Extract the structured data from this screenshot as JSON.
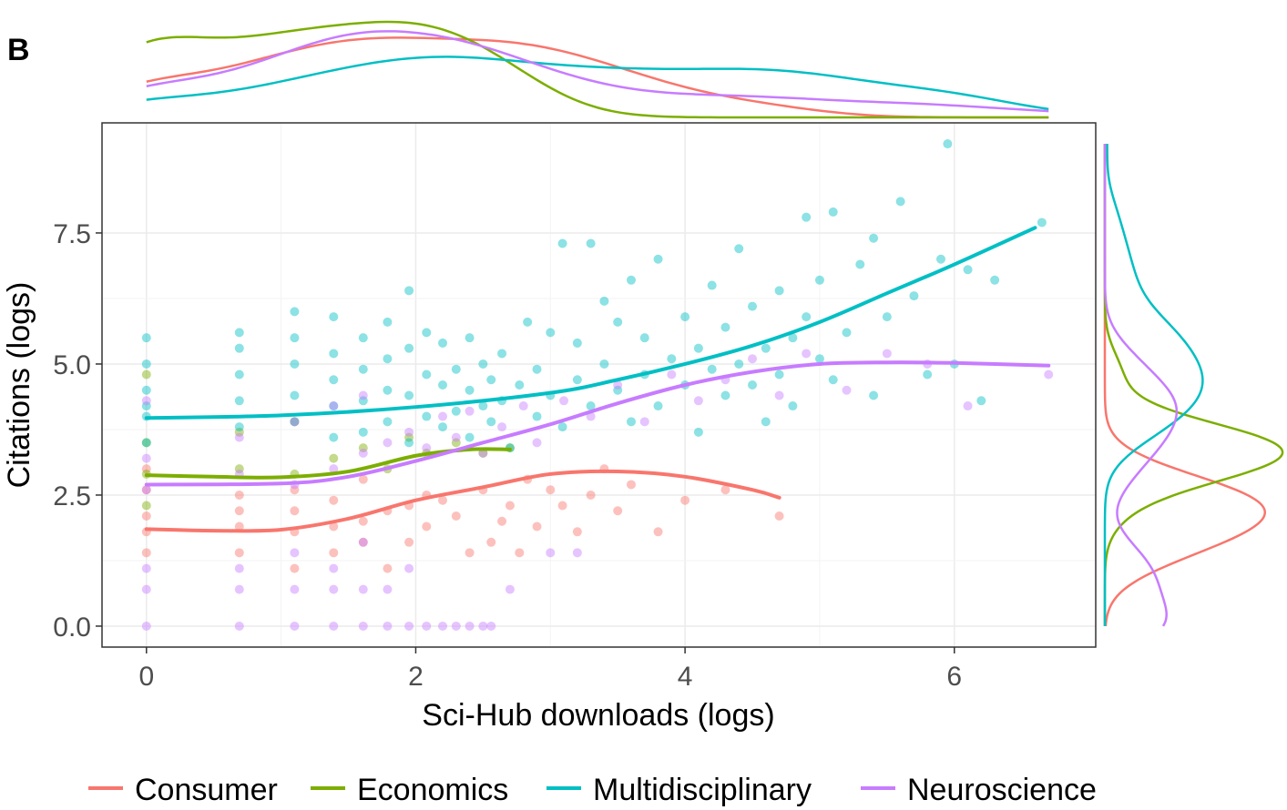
{
  "panel_label": "B",
  "colors": {
    "Consumer": "#F8766D",
    "Economics": "#7CAE00",
    "Multidisciplinary": "#00BFC4",
    "Neuroscience": "#C77CFF"
  },
  "chart_data": {
    "type": "scatter",
    "title": "",
    "xlabel": "Sci-Hub downloads (logs)",
    "ylabel": "Citations (logs)",
    "xlim": [
      -0.33,
      7.05
    ],
    "ylim": [
      -0.4,
      9.6
    ],
    "x_ticks": [
      0,
      2,
      4,
      6
    ],
    "x_tick_labels": [
      "0",
      "2",
      "4",
      "6"
    ],
    "y_ticks": [
      0.0,
      2.5,
      5.0,
      7.5
    ],
    "y_tick_labels": [
      "0.0",
      "2.5",
      "5.0",
      "7.5"
    ],
    "grid": true,
    "marginal_density": {
      "top": true,
      "right": true
    },
    "legend_position": "bottom",
    "legend": [
      "Consumer",
      "Economics",
      "Multidisciplinary",
      "Neuroscience"
    ],
    "series": [
      {
        "name": "Consumer",
        "color": "#F8766D",
        "smooth": [
          [
            0,
            1.85
          ],
          [
            0.5,
            1.82
          ],
          [
            1,
            1.84
          ],
          [
            1.5,
            2.05
          ],
          [
            2,
            2.4
          ],
          [
            2.5,
            2.65
          ],
          [
            3,
            2.9
          ],
          [
            3.5,
            2.95
          ],
          [
            4,
            2.85
          ],
          [
            4.5,
            2.6
          ],
          [
            4.7,
            2.45
          ]
        ],
        "points": [
          [
            0,
            1.8
          ],
          [
            0,
            2.1
          ],
          [
            0,
            1.4
          ],
          [
            0,
            2.6
          ],
          [
            0,
            3.0
          ],
          [
            0.69,
            1.9
          ],
          [
            0.69,
            2.2
          ],
          [
            0.69,
            1.4
          ],
          [
            0.69,
            2.5
          ],
          [
            1.1,
            1.8
          ],
          [
            1.1,
            2.2
          ],
          [
            1.1,
            1.1
          ],
          [
            1.1,
            2.6
          ],
          [
            1.39,
            1.9
          ],
          [
            1.39,
            1.4
          ],
          [
            1.39,
            2.4
          ],
          [
            1.61,
            2.0
          ],
          [
            1.61,
            1.6
          ],
          [
            1.61,
            2.8
          ],
          [
            1.79,
            2.2
          ],
          [
            1.79,
            1.1
          ],
          [
            1.95,
            2.3
          ],
          [
            1.95,
            1.6
          ],
          [
            2.08,
            2.5
          ],
          [
            2.08,
            1.9
          ],
          [
            2.2,
            2.4
          ],
          [
            2.3,
            2.1
          ],
          [
            2.4,
            1.4
          ],
          [
            2.5,
            2.6
          ],
          [
            2.56,
            1.6
          ],
          [
            2.64,
            2.0
          ],
          [
            2.7,
            2.3
          ],
          [
            2.77,
            1.4
          ],
          [
            2.83,
            2.8
          ],
          [
            2.9,
            1.9
          ],
          [
            3.0,
            2.6
          ],
          [
            3.09,
            2.3
          ],
          [
            3.2,
            1.8
          ],
          [
            3.3,
            2.5
          ],
          [
            3.4,
            3.0
          ],
          [
            3.5,
            2.2
          ],
          [
            3.6,
            2.7
          ],
          [
            3.8,
            1.8
          ],
          [
            4.0,
            2.4
          ],
          [
            4.3,
            2.6
          ],
          [
            4.7,
            2.1
          ]
        ]
      },
      {
        "name": "Economics",
        "color": "#7CAE00",
        "smooth": [
          [
            0,
            2.88
          ],
          [
            0.5,
            2.85
          ],
          [
            1,
            2.84
          ],
          [
            1.5,
            2.95
          ],
          [
            2,
            3.25
          ],
          [
            2.4,
            3.37
          ],
          [
            2.7,
            3.37
          ]
        ],
        "points": [
          [
            0,
            2.9
          ],
          [
            0,
            3.5
          ],
          [
            0,
            4.8
          ],
          [
            0,
            2.3
          ],
          [
            0.69,
            3.0
          ],
          [
            0.69,
            3.7
          ],
          [
            1.1,
            2.9
          ],
          [
            1.1,
            3.9
          ],
          [
            1.39,
            3.2
          ],
          [
            1.61,
            3.4
          ],
          [
            1.79,
            3.0
          ],
          [
            1.95,
            3.6
          ],
          [
            2.08,
            3.3
          ],
          [
            2.3,
            3.5
          ],
          [
            2.5,
            3.3
          ],
          [
            2.7,
            3.4
          ]
        ]
      },
      {
        "name": "Multidisciplinary",
        "color": "#00BFC4",
        "smooth": [
          [
            0,
            3.97
          ],
          [
            1,
            4.02
          ],
          [
            2,
            4.18
          ],
          [
            3,
            4.45
          ],
          [
            3.5,
            4.7
          ],
          [
            4,
            5.0
          ],
          [
            4.5,
            5.35
          ],
          [
            5,
            5.8
          ],
          [
            5.5,
            6.35
          ],
          [
            6,
            6.9
          ],
          [
            6.6,
            7.6
          ]
        ],
        "points": [
          [
            0,
            3.5
          ],
          [
            0,
            4.0
          ],
          [
            0,
            4.5
          ],
          [
            0,
            5.0
          ],
          [
            0,
            5.5
          ],
          [
            0,
            4.2
          ],
          [
            0.69,
            3.8
          ],
          [
            0.69,
            4.3
          ],
          [
            0.69,
            4.8
          ],
          [
            0.69,
            5.3
          ],
          [
            0.69,
            5.6
          ],
          [
            1.1,
            3.9
          ],
          [
            1.1,
            4.4
          ],
          [
            1.1,
            5.0
          ],
          [
            1.1,
            5.5
          ],
          [
            1.1,
            6.0
          ],
          [
            1.39,
            3.6
          ],
          [
            1.39,
            4.2
          ],
          [
            1.39,
            4.7
          ],
          [
            1.39,
            5.2
          ],
          [
            1.39,
            5.9
          ],
          [
            1.61,
            3.7
          ],
          [
            1.61,
            4.3
          ],
          [
            1.61,
            4.9
          ],
          [
            1.61,
            5.5
          ],
          [
            1.79,
            3.9
          ],
          [
            1.79,
            4.5
          ],
          [
            1.79,
            5.1
          ],
          [
            1.79,
            5.8
          ],
          [
            1.95,
            3.5
          ],
          [
            1.95,
            4.4
          ],
          [
            1.95,
            5.3
          ],
          [
            1.95,
            6.4
          ],
          [
            2.08,
            4.0
          ],
          [
            2.08,
            4.8
          ],
          [
            2.08,
            5.6
          ],
          [
            2.2,
            3.8
          ],
          [
            2.2,
            4.6
          ],
          [
            2.2,
            5.4
          ],
          [
            2.3,
            4.1
          ],
          [
            2.3,
            4.9
          ],
          [
            2.4,
            3.6
          ],
          [
            2.4,
            4.5
          ],
          [
            2.4,
            5.5
          ],
          [
            2.5,
            4.2
          ],
          [
            2.5,
            5.0
          ],
          [
            2.56,
            3.9
          ],
          [
            2.56,
            4.7
          ],
          [
            2.64,
            4.3
          ],
          [
            2.64,
            5.2
          ],
          [
            2.7,
            3.4
          ],
          [
            2.77,
            4.6
          ],
          [
            2.83,
            5.8
          ],
          [
            2.9,
            4.0
          ],
          [
            2.9,
            4.9
          ],
          [
            3.0,
            4.4
          ],
          [
            3.0,
            5.6
          ],
          [
            3.09,
            3.8
          ],
          [
            3.09,
            7.3
          ],
          [
            3.2,
            4.7
          ],
          [
            3.2,
            5.4
          ],
          [
            3.3,
            4.2
          ],
          [
            3.3,
            7.3
          ],
          [
            3.4,
            5.0
          ],
          [
            3.4,
            6.2
          ],
          [
            3.5,
            4.5
          ],
          [
            3.5,
            5.8
          ],
          [
            3.6,
            3.9
          ],
          [
            3.6,
            6.6
          ],
          [
            3.7,
            4.8
          ],
          [
            3.7,
            5.5
          ],
          [
            3.8,
            4.2
          ],
          [
            3.8,
            7.0
          ],
          [
            3.9,
            5.1
          ],
          [
            4.0,
            4.6
          ],
          [
            4.0,
            5.9
          ],
          [
            4.1,
            3.7
          ],
          [
            4.1,
            5.3
          ],
          [
            4.2,
            4.9
          ],
          [
            4.2,
            6.5
          ],
          [
            4.3,
            4.4
          ],
          [
            4.3,
            5.7
          ],
          [
            4.4,
            5.0
          ],
          [
            4.4,
            7.2
          ],
          [
            4.5,
            4.6
          ],
          [
            4.5,
            6.1
          ],
          [
            4.6,
            5.3
          ],
          [
            4.6,
            3.9
          ],
          [
            4.7,
            4.8
          ],
          [
            4.7,
            6.4
          ],
          [
            4.8,
            5.5
          ],
          [
            4.8,
            4.2
          ],
          [
            4.9,
            5.9
          ],
          [
            4.9,
            7.8
          ],
          [
            5.0,
            5.1
          ],
          [
            5.0,
            6.6
          ],
          [
            5.1,
            7.9
          ],
          [
            5.1,
            4.7
          ],
          [
            5.2,
            5.6
          ],
          [
            5.3,
            6.9
          ],
          [
            5.4,
            7.4
          ],
          [
            5.4,
            4.4
          ],
          [
            5.5,
            5.9
          ],
          [
            5.6,
            8.1
          ],
          [
            5.7,
            6.3
          ],
          [
            5.8,
            4.8
          ],
          [
            5.9,
            7.0
          ],
          [
            5.95,
            9.2
          ],
          [
            6.0,
            5.0
          ],
          [
            6.1,
            6.8
          ],
          [
            6.2,
            4.3
          ],
          [
            6.3,
            6.6
          ],
          [
            6.65,
            7.7
          ]
        ]
      },
      {
        "name": "Neuroscience",
        "color": "#C77CFF",
        "smooth": [
          [
            0,
            2.7
          ],
          [
            1,
            2.72
          ],
          [
            1.5,
            2.85
          ],
          [
            2,
            3.15
          ],
          [
            2.5,
            3.5
          ],
          [
            3,
            3.85
          ],
          [
            3.5,
            4.25
          ],
          [
            4,
            4.6
          ],
          [
            4.5,
            4.85
          ],
          [
            5,
            5.0
          ],
          [
            5.5,
            5.03
          ],
          [
            6,
            5.02
          ],
          [
            6.7,
            4.97
          ]
        ],
        "points": [
          [
            0,
            0.7
          ],
          [
            0,
            0.0
          ],
          [
            0,
            1.1
          ],
          [
            0,
            2.6
          ],
          [
            0,
            3.2
          ],
          [
            0,
            4.3
          ],
          [
            0.69,
            0.7
          ],
          [
            0.69,
            0.0
          ],
          [
            0.69,
            1.1
          ],
          [
            0.69,
            2.9
          ],
          [
            0.69,
            3.6
          ],
          [
            1.1,
            0.7
          ],
          [
            1.1,
            0.0
          ],
          [
            1.1,
            1.4
          ],
          [
            1.1,
            2.7
          ],
          [
            1.1,
            3.9
          ],
          [
            1.39,
            0.7
          ],
          [
            1.39,
            0.0
          ],
          [
            1.39,
            1.1
          ],
          [
            1.39,
            3.0
          ],
          [
            1.39,
            4.2
          ],
          [
            1.61,
            0.7
          ],
          [
            1.61,
            0.0
          ],
          [
            1.61,
            1.6
          ],
          [
            1.61,
            3.3
          ],
          [
            1.61,
            4.4
          ],
          [
            1.79,
            0.0
          ],
          [
            1.79,
            0.7
          ],
          [
            1.79,
            3.5
          ],
          [
            1.95,
            0.0
          ],
          [
            1.95,
            1.1
          ],
          [
            1.95,
            3.7
          ],
          [
            2.08,
            0.0
          ],
          [
            2.08,
            3.4
          ],
          [
            2.2,
            0.0
          ],
          [
            2.2,
            4.0
          ],
          [
            2.3,
            0.0
          ],
          [
            2.3,
            3.6
          ],
          [
            2.4,
            0.0
          ],
          [
            2.4,
            4.1
          ],
          [
            2.5,
            0.0
          ],
          [
            2.5,
            3.3
          ],
          [
            2.56,
            0.0
          ],
          [
            2.64,
            3.8
          ],
          [
            2.7,
            0.7
          ],
          [
            2.8,
            4.2
          ],
          [
            2.9,
            3.5
          ],
          [
            3.0,
            1.4
          ],
          [
            3.1,
            4.3
          ],
          [
            3.2,
            1.4
          ],
          [
            3.3,
            4.0
          ],
          [
            3.5,
            4.6
          ],
          [
            3.7,
            3.9
          ],
          [
            3.9,
            4.8
          ],
          [
            4.1,
            4.3
          ],
          [
            4.3,
            4.7
          ],
          [
            4.5,
            5.1
          ],
          [
            4.7,
            4.4
          ],
          [
            4.9,
            5.2
          ],
          [
            5.2,
            4.5
          ],
          [
            5.5,
            5.2
          ],
          [
            5.8,
            5.0
          ],
          [
            6.1,
            4.2
          ],
          [
            6.7,
            4.8
          ]
        ]
      }
    ]
  }
}
